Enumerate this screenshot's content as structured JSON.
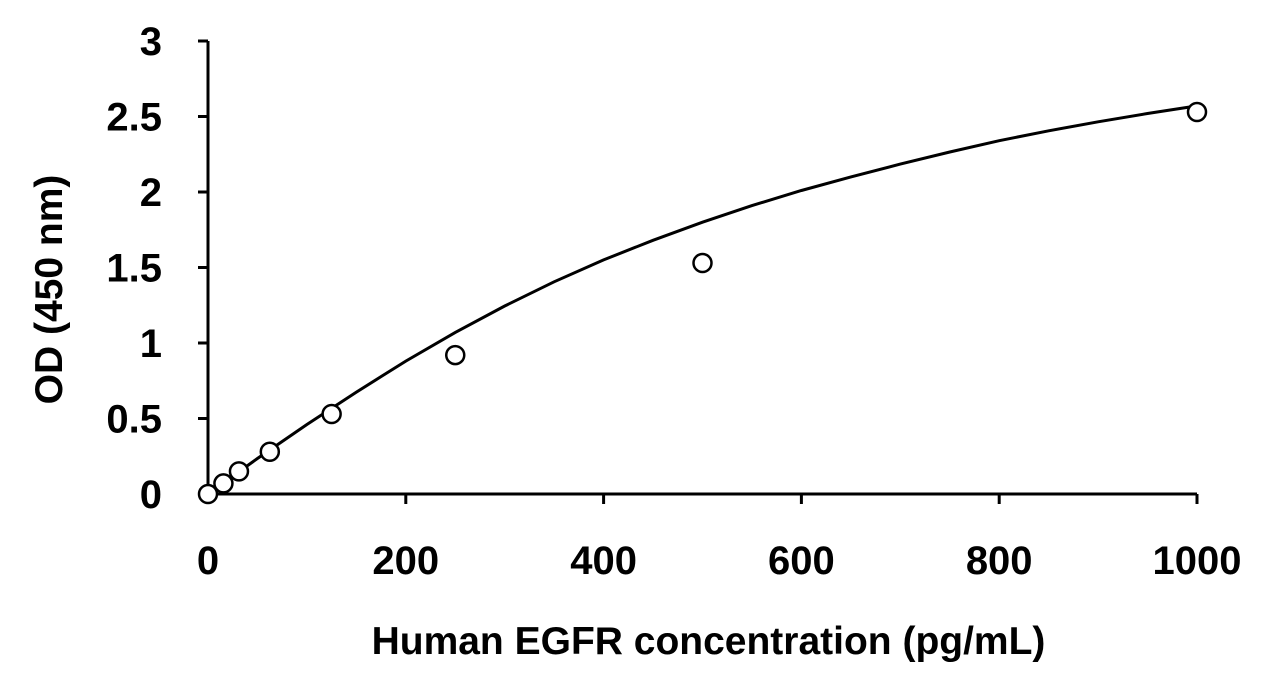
{
  "chart_data": {
    "type": "scatter",
    "title": "",
    "xlabel": "Human EGFR concentration (pg/mL)",
    "ylabel": "OD (450 nm)",
    "xlim": [
      0,
      1000
    ],
    "ylim": [
      0,
      3
    ],
    "x_ticks": [
      0,
      200,
      400,
      600,
      800,
      1000
    ],
    "y_ticks": [
      0,
      0.5,
      1,
      1.5,
      2,
      2.5,
      3
    ],
    "x_tick_labels": [
      "0",
      "200",
      "400",
      "600",
      "800",
      "1000"
    ],
    "y_tick_labels": [
      "0",
      "0.5",
      "1",
      "1.5",
      "2",
      "2.5",
      "3"
    ],
    "grid": false,
    "legend": "none",
    "marker": "open-circle",
    "series": [
      {
        "x": [
          0,
          15.6,
          31.3,
          62.5,
          125,
          250,
          500,
          1000
        ],
        "y": [
          0,
          0.07,
          0.15,
          0.28,
          0.53,
          0.92,
          1.53,
          2.53
        ]
      }
    ],
    "fit_curve": {
      "type": "smooth-fit",
      "x": [
        0,
        50,
        100,
        150,
        200,
        250,
        300,
        350,
        400,
        450,
        500,
        550,
        600,
        650,
        700,
        750,
        800,
        850,
        900,
        950,
        1000
      ],
      "y": [
        0,
        0.235,
        0.46,
        0.675,
        0.88,
        1.07,
        1.245,
        1.405,
        1.55,
        1.68,
        1.8,
        1.91,
        2.01,
        2.1,
        2.185,
        2.265,
        2.34,
        2.405,
        2.465,
        2.52,
        2.57
      ]
    }
  }
}
